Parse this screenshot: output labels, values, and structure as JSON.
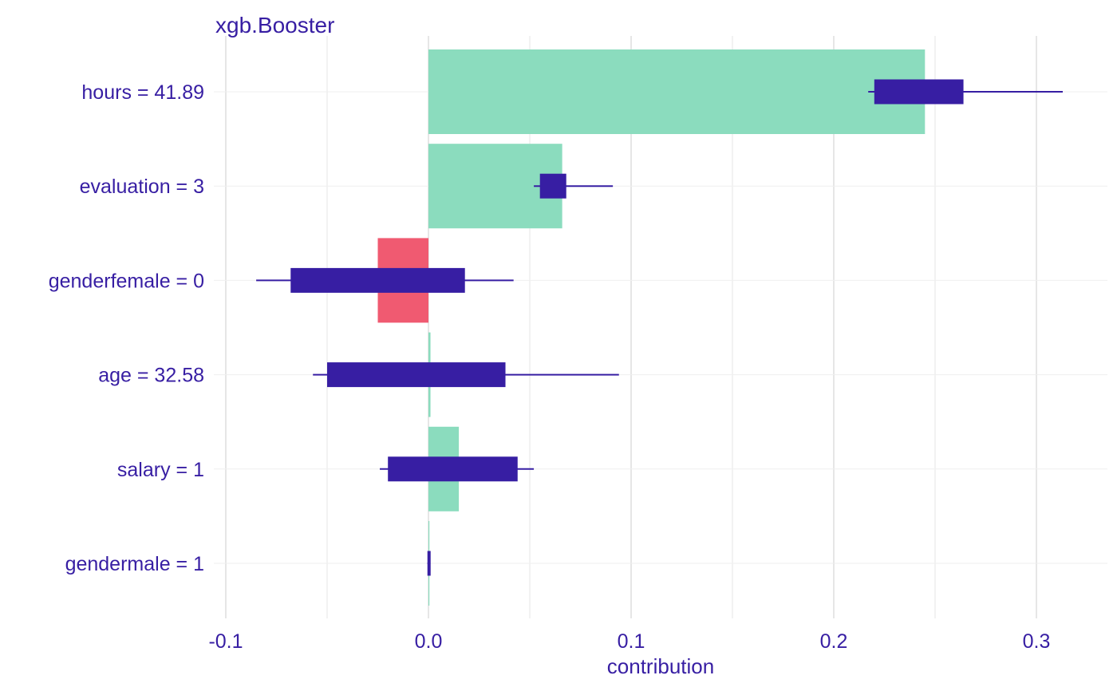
{
  "chart_data": {
    "type": "bar",
    "title": "xgb.Booster",
    "xlabel": "contribution",
    "ylabel": "",
    "xlim": [
      -0.11,
      0.335
    ],
    "xticks": [
      -0.1,
      0.0,
      0.1,
      0.2,
      0.3
    ],
    "xtick_labels": [
      "-0.1",
      "0.0",
      "0.1",
      "0.2",
      "0.3"
    ],
    "grid": true,
    "colors": {
      "positive": "#8bdcbe",
      "negative": "#f05a71",
      "boxplot": "#371ea3",
      "text": "#371ea3",
      "grid": "#e6e6e6"
    },
    "categories": [
      "hours = 41.89",
      "evaluation = 3",
      "genderfemale = 0",
      "age = 32.58",
      "salary = 1",
      "gendermale = 1"
    ],
    "values": [
      0.245,
      0.066,
      -0.025,
      0.001,
      0.015,
      0.0
    ],
    "boxplots": [
      {
        "min": 0.217,
        "q1": 0.22,
        "q3": 0.264,
        "max": 0.313
      },
      {
        "min": 0.052,
        "q1": 0.055,
        "q3": 0.068,
        "max": 0.091
      },
      {
        "min": -0.085,
        "q1": -0.068,
        "q3": 0.018,
        "max": 0.042
      },
      {
        "min": -0.057,
        "q1": -0.05,
        "q3": 0.038,
        "max": 0.094
      },
      {
        "min": -0.024,
        "q1": -0.02,
        "q3": 0.044,
        "max": 0.052
      },
      {
        "min": -0.0005,
        "q1": -0.0005,
        "q3": 0.001,
        "max": 0.001
      }
    ]
  }
}
